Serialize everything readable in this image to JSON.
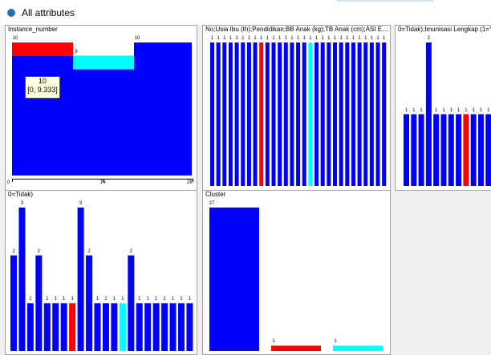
{
  "window": {
    "title": "All attributes"
  },
  "colors": {
    "blue": "#0000ff",
    "red": "#ff0000",
    "cyan": "#00ffff"
  },
  "panels": [
    {
      "title": "Instance_number",
      "tooltip": {
        "value": "10",
        "range": "[0, 9.333]"
      },
      "chart_data": {
        "type": "bar",
        "ylim": [
          0,
          10
        ],
        "x_ticks": [
          "0",
          "14",
          "28"
        ],
        "bins": [
          {
            "value": 10,
            "label": "10",
            "color": "blue",
            "top_color": "red",
            "top_value": 1
          },
          {
            "value": 9,
            "label": "9",
            "color": "blue",
            "top_color": "cyan",
            "top_value": 1
          },
          {
            "value": 10,
            "label": "10",
            "color": "blue"
          }
        ]
      }
    },
    {
      "title": "No;Usia Ibu (th);Pendidikan;BB Anak (kg);TB Anak (cm);ASI E…",
      "chart_data": {
        "type": "bar",
        "ylim": [
          0,
          1
        ],
        "values": [
          1,
          1,
          1,
          1,
          1,
          1,
          1,
          1,
          1,
          1,
          1,
          1,
          1,
          1,
          1,
          1,
          1,
          1,
          1,
          1,
          1,
          1,
          1,
          1,
          1,
          1,
          1,
          1,
          1
        ],
        "labels": [
          "1",
          "1",
          "1",
          "1",
          "1",
          "1",
          "1",
          "1",
          "1",
          "1",
          "1",
          "1",
          "1",
          "1",
          "1",
          "1",
          "1",
          "1",
          "1",
          "1",
          "1",
          "1",
          "1",
          "1",
          "1",
          "1",
          "1",
          "1",
          "1"
        ],
        "colors": [
          "blue",
          "blue",
          "blue",
          "blue",
          "blue",
          "blue",
          "blue",
          "blue",
          "red",
          "blue",
          "blue",
          "blue",
          "blue",
          "blue",
          "blue",
          "blue",
          "cyan",
          "blue",
          "blue",
          "blue",
          "blue",
          "blue",
          "blue",
          "blue",
          "blue",
          "blue",
          "blue",
          "blue",
          "blue"
        ]
      }
    },
    {
      "title": "0=Tidak);Imunisasi Lengkap (1=Y",
      "chart_data": {
        "type": "bar",
        "ylim": [
          0,
          2
        ],
        "values": [
          1,
          1,
          1,
          2,
          1,
          1,
          1,
          1,
          1,
          1,
          1,
          1
        ],
        "labels": [
          "1",
          "1",
          "1",
          "2",
          "1",
          "1",
          "1",
          "1",
          "1",
          "1",
          "1",
          "1"
        ],
        "colors": [
          "blue",
          "blue",
          "blue",
          "blue",
          "blue",
          "blue",
          "blue",
          "blue",
          "red",
          "blue",
          "blue",
          "blue"
        ]
      }
    },
    {
      "title": "0=Tidak)",
      "chart_data": {
        "type": "bar",
        "ylim": [
          0,
          3
        ],
        "values": [
          2,
          3,
          1,
          2,
          1,
          1,
          1,
          1,
          3,
          2,
          1,
          1,
          1,
          1,
          2,
          1,
          1,
          1,
          1,
          1,
          1,
          1
        ],
        "labels": [
          "2",
          "3",
          "1",
          "2",
          "1",
          "1",
          "1",
          "1",
          "3",
          "2",
          "1",
          "1",
          "1",
          "1",
          "2",
          "1",
          "1",
          "1",
          "1",
          "1",
          "1",
          "1"
        ],
        "colors": [
          "blue",
          "blue",
          "blue",
          "blue",
          "blue",
          "blue",
          "blue",
          "red",
          "blue",
          "blue",
          "blue",
          "blue",
          "blue",
          "cyan",
          "blue",
          "blue",
          "blue",
          "blue",
          "blue",
          "blue",
          "blue",
          "blue"
        ]
      }
    },
    {
      "title": "Cluster",
      "chart_data": {
        "type": "bar",
        "ylim": [
          0,
          27
        ],
        "values": [
          27,
          1,
          1
        ],
        "labels": [
          "27",
          "1",
          "1"
        ],
        "colors": [
          "blue",
          "red",
          "cyan"
        ]
      }
    }
  ]
}
